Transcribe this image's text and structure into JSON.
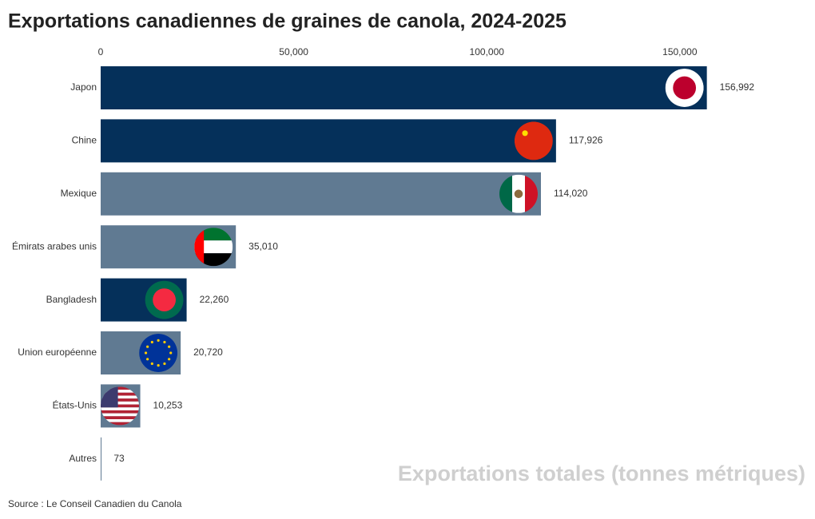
{
  "chart_data": {
    "type": "hbar",
    "title": "Exportations canadiennes de graines de canola, 2024-2025",
    "x_label": "Exportations totales (tonnes métriques)",
    "source": "Source : Le Conseil Canadien du Canola",
    "categories": [
      "Japon",
      "Chine",
      "Mexique",
      "Émirats arabes unis",
      "Bangladesh",
      "Union européenne",
      "États-Unis",
      "Autres"
    ],
    "values": [
      156992,
      117926,
      114020,
      35010,
      22260,
      20720,
      10253,
      73
    ],
    "value_labels": [
      "156,992",
      "117,926",
      "114,020",
      "35,010",
      "22,260",
      "20,720",
      "10,253",
      "73"
    ],
    "colors": [
      "#05305a",
      "#05305a",
      "#607a92",
      "#607a92",
      "#05305a",
      "#607a92",
      "#607a92",
      "#607a92"
    ],
    "xlim": [
      0,
      185000
    ],
    "xticks": [
      0,
      {
        "value": 50000,
        "label": "50,000"
      },
      {
        "value": 100000,
        "label": "100,000"
      },
      {
        "value": 150000,
        "label": "150,000"
      }
    ],
    "grid": false
  }
}
